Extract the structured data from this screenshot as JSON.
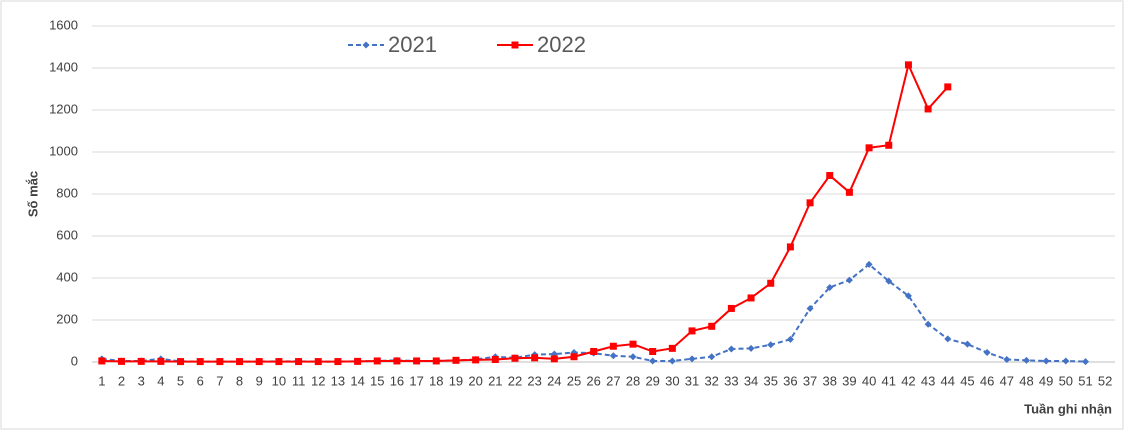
{
  "chart_data": {
    "type": "line",
    "x_label": "Tuần ghi nhận",
    "y_label": "Số mắc",
    "categories": [
      "1",
      "2",
      "3",
      "4",
      "5",
      "6",
      "7",
      "8",
      "9",
      "10",
      "11",
      "12",
      "13",
      "14",
      "15",
      "16",
      "17",
      "18",
      "19",
      "20",
      "21",
      "22",
      "23",
      "24",
      "25",
      "26",
      "27",
      "28",
      "29",
      "30",
      "31",
      "32",
      "33",
      "34",
      "35",
      "36",
      "37",
      "38",
      "39",
      "40",
      "41",
      "42",
      "43",
      "44",
      "45",
      "46",
      "47",
      "48",
      "49",
      "50",
      "51",
      "52"
    ],
    "series": [
      {
        "name": "2021",
        "color": "#4472c4",
        "dashed": true,
        "marker": "diamond",
        "values": [
          15,
          5,
          5,
          15,
          3,
          2,
          2,
          2,
          2,
          3,
          3,
          2,
          2,
          3,
          5,
          8,
          5,
          5,
          8,
          12,
          25,
          20,
          35,
          38,
          45,
          42,
          30,
          25,
          5,
          5,
          15,
          25,
          62,
          65,
          82,
          108,
          255,
          355,
          390,
          465,
          385,
          315,
          180,
          110,
          85,
          45,
          12,
          8,
          5,
          5,
          2,
          null
        ]
      },
      {
        "name": "2022",
        "color": "#ff0000",
        "dashed": false,
        "marker": "square",
        "values": [
          5,
          3,
          3,
          3,
          2,
          2,
          2,
          2,
          2,
          2,
          2,
          2,
          2,
          3,
          5,
          5,
          5,
          5,
          8,
          10,
          12,
          18,
          20,
          15,
          25,
          50,
          75,
          85,
          50,
          65,
          148,
          170,
          255,
          305,
          375,
          548,
          758,
          888,
          808,
          1020,
          1032,
          1415,
          1205,
          1310,
          null,
          null,
          null,
          null,
          null,
          null,
          null,
          null
        ]
      }
    ],
    "ylim": [
      0,
      1600
    ],
    "yticks": [
      0,
      200,
      400,
      600,
      800,
      1000,
      1200,
      1400,
      1600
    ],
    "grid": true
  }
}
